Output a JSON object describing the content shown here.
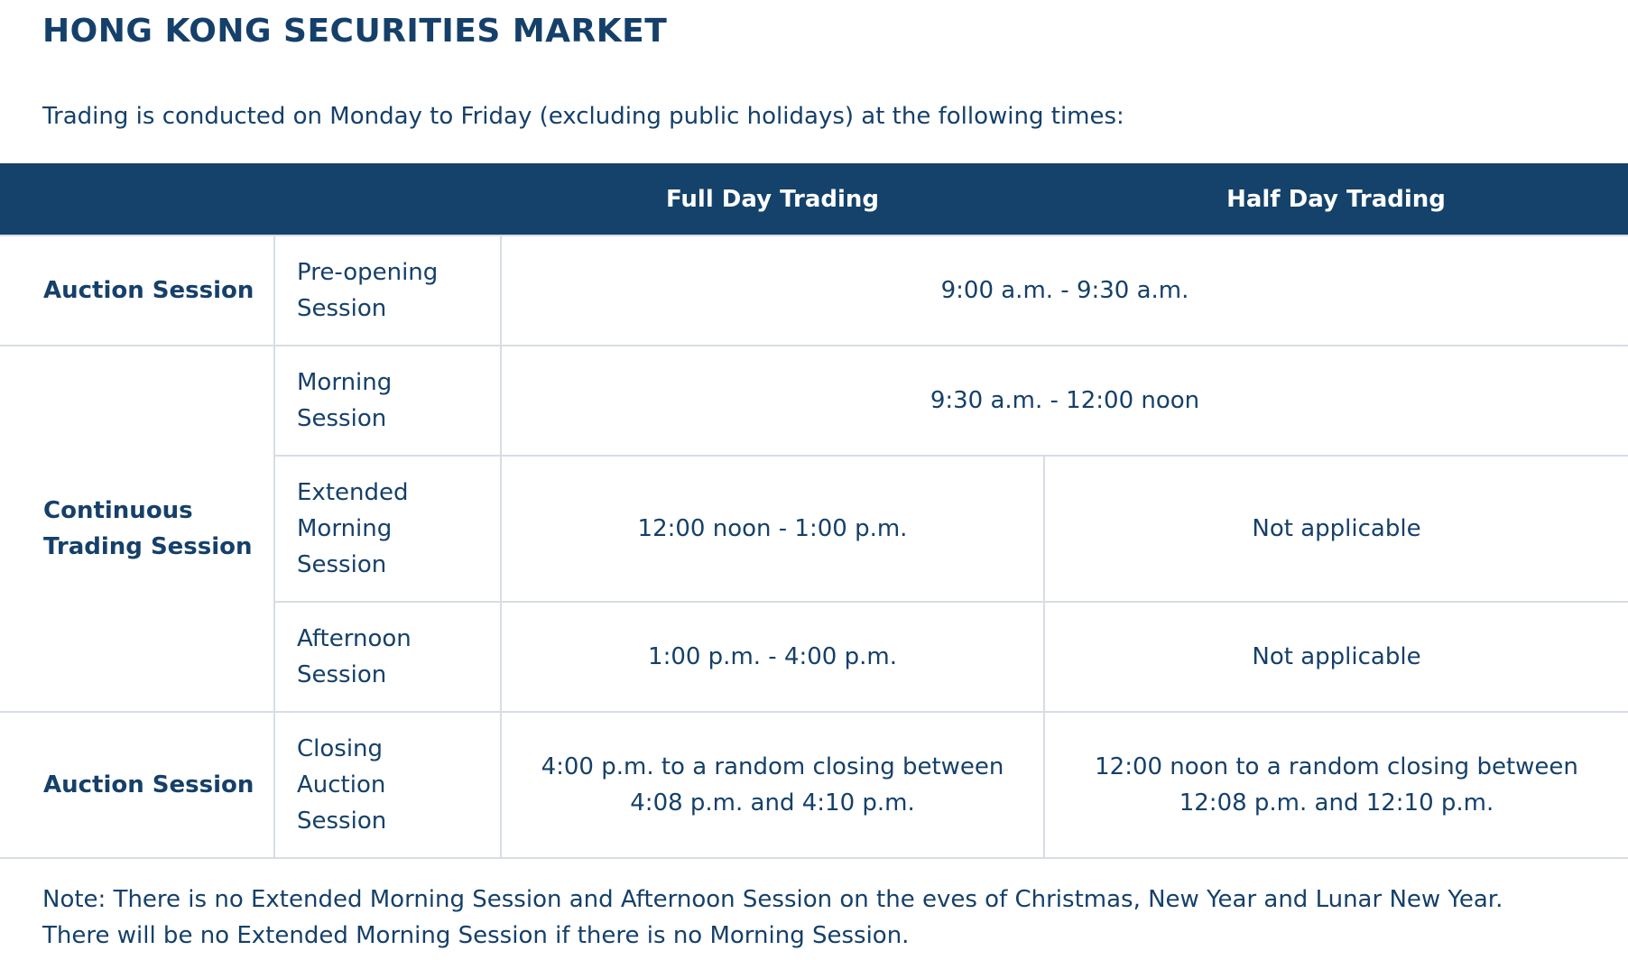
{
  "page": {
    "title": "HONG KONG SECURITIES MARKET",
    "intro": "Trading is conducted on Monday to Friday (excluding public holidays) at the following times:"
  },
  "table": {
    "headers": [
      "",
      "",
      "Full Day Trading",
      "Half Day Trading"
    ],
    "groups": {
      "auction_1": "Auction Session",
      "continuous_line1": "Continuous",
      "continuous_line2": "Trading Session",
      "auction_2": "Auction Session"
    },
    "rows": {
      "pre_opening": {
        "session_line1": "Pre-opening",
        "session_line2": "Session",
        "combined": "9:00 a.m. - 9:30 a.m."
      },
      "morning": {
        "session_line1": "Morning",
        "session_line2": "Session",
        "combined": "9:30 a.m. - 12:00 noon"
      },
      "extended_morning": {
        "session_line1": "Extended",
        "session_line2": "Morning",
        "session_line3": "Session",
        "full_day": "12:00 noon - 1:00 p.m.",
        "half_day": "Not applicable"
      },
      "afternoon": {
        "session_line1": "Afternoon",
        "session_line2": "Session",
        "full_day": "1:00 p.m. - 4:00 p.m.",
        "half_day": "Not applicable"
      },
      "closing_auction": {
        "session_line1": "Closing",
        "session_line2": "Auction",
        "session_line3": "Session",
        "full_day_line1": "4:00 p.m. to a random closing between",
        "full_day_line2": "4:08 p.m. and 4:10 p.m.",
        "half_day_line1": "12:00 noon to a random closing between",
        "half_day_line2": "12:08 p.m. and 12:10 p.m."
      }
    }
  },
  "note": {
    "line1": "Note: There is no Extended Morning Session and Afternoon Session on the eves of Christmas, New Year and Lunar New Year.",
    "line2": "There will be no Extended Morning Session if there is no Morning Session."
  },
  "colors": {
    "header_bg": "#14426a",
    "text": "#15406a",
    "border": "#d6dde4"
  }
}
